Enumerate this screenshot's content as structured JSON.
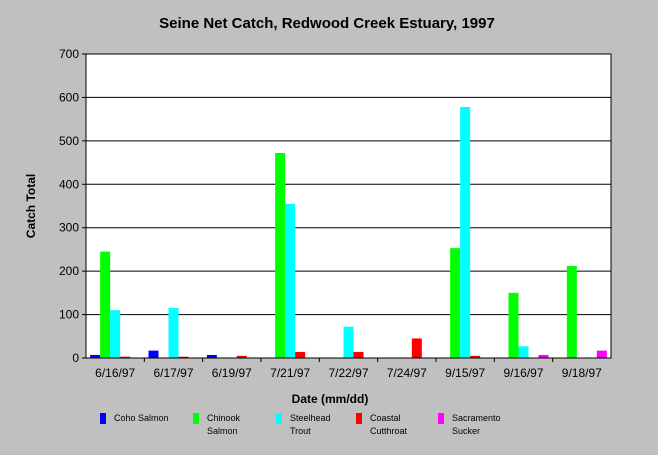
{
  "chart_data": {
    "type": "bar",
    "title": "Seine Net Catch, Redwood Creek Estuary, 1997",
    "xlabel": "Date (mm/dd)",
    "ylabel": "Catch Total",
    "ylim": [
      0,
      700
    ],
    "yticks": [
      "0",
      "100",
      "200",
      "300",
      "400",
      "500",
      "600",
      "700"
    ],
    "grid": "horizontal",
    "legend_position": "bottom",
    "categories": [
      "6/16/97",
      "6/17/97",
      "6/19/97",
      "7/21/97",
      "7/22/97",
      "7/24/97",
      "9/15/97",
      "9/16/97",
      "9/18/97"
    ],
    "series": [
      {
        "name": "Coho Salmon",
        "color": "#0000ff",
        "values": [
          7,
          17,
          7,
          0,
          0,
          0,
          0,
          0,
          0
        ]
      },
      {
        "name": "Chinook Salmon",
        "color": "#00ff00",
        "values": [
          245,
          0,
          0,
          472,
          0,
          0,
          253,
          150,
          212
        ]
      },
      {
        "name": "Steelhead Trout",
        "color": "#00ffff",
        "values": [
          110,
          115,
          0,
          355,
          72,
          0,
          578,
          27,
          0
        ]
      },
      {
        "name": "Coastal Cutthroat",
        "color": "#ff0000",
        "values": [
          3,
          3,
          5,
          14,
          14,
          45,
          5,
          0,
          0
        ]
      },
      {
        "name": "Sacramento Sucker",
        "color": "#ff00ff",
        "values": [
          0,
          0,
          0,
          0,
          0,
          0,
          0,
          7,
          17
        ]
      }
    ]
  },
  "legend": [
    {
      "line1": "Coho Salmon",
      "line2": ""
    },
    {
      "line1": "Chinook",
      "line2": "Salmon"
    },
    {
      "line1": "Steelhead",
      "line2": "Trout"
    },
    {
      "line1": "Coastal",
      "line2": "Cutthroat"
    },
    {
      "line1": "Sacramento",
      "line2": "Sucker"
    }
  ]
}
